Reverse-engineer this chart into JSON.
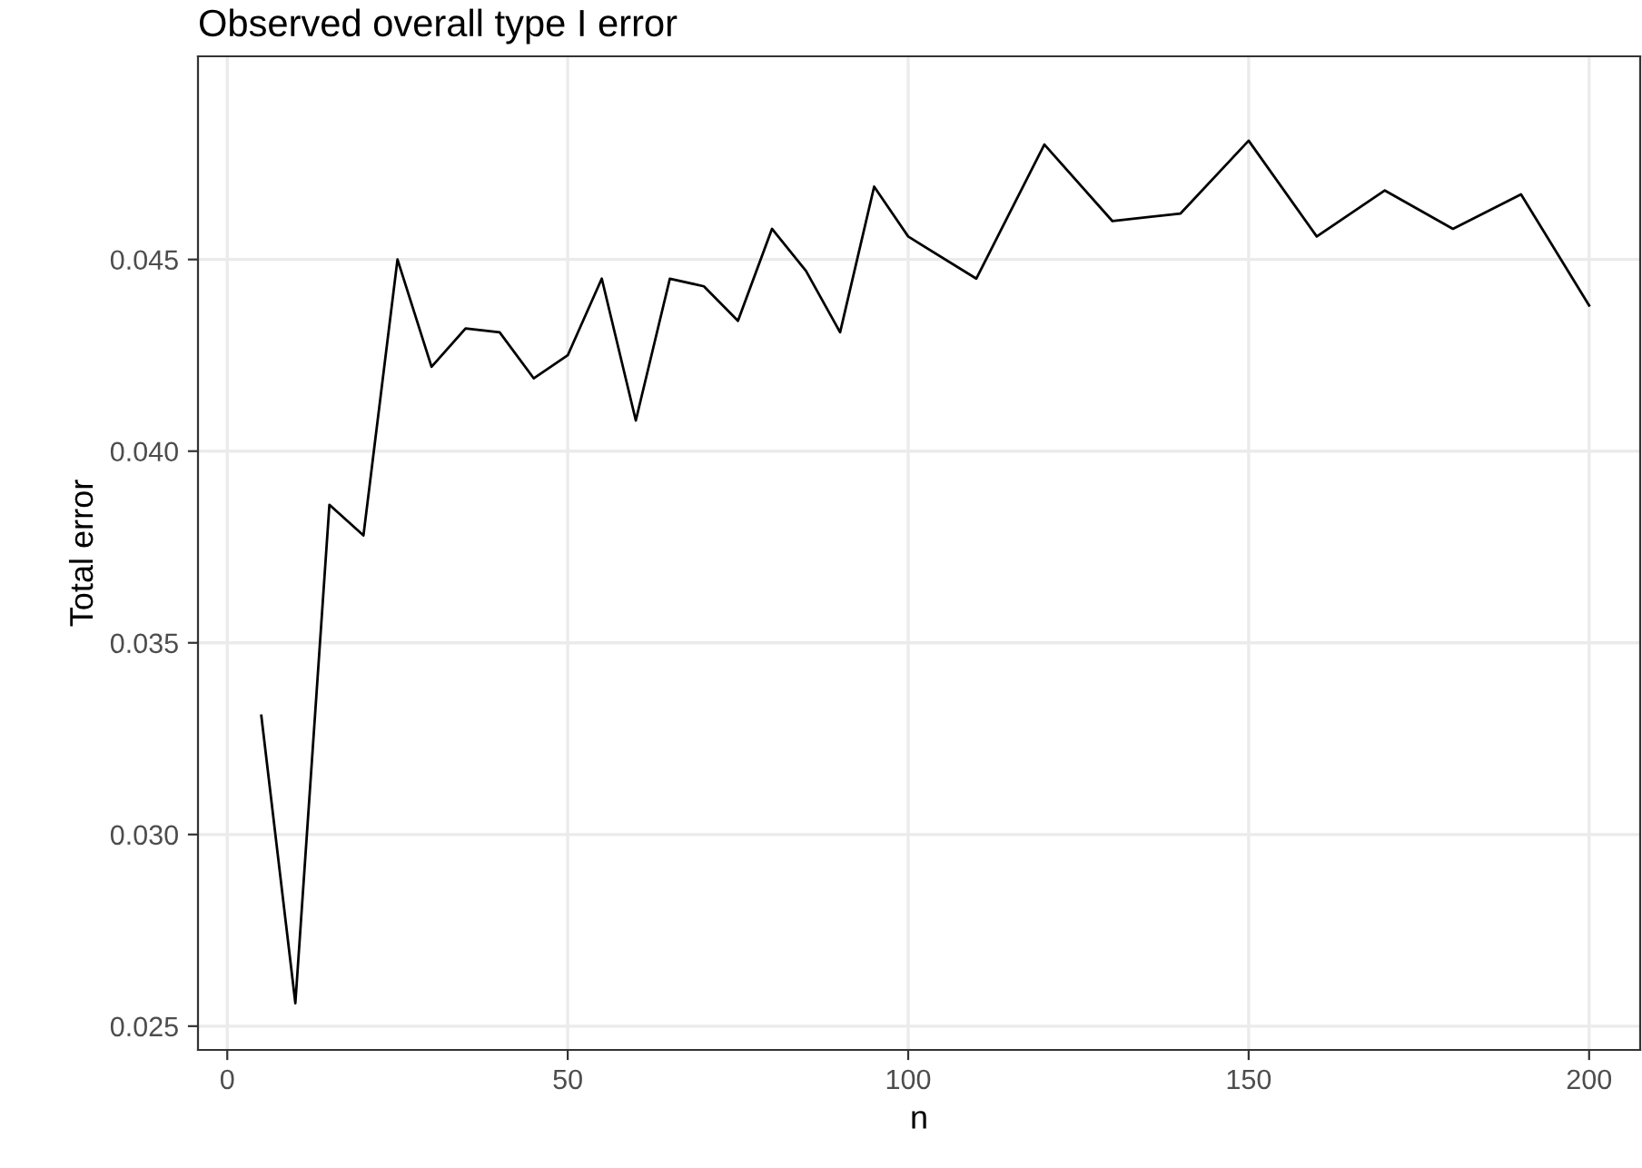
{
  "chart_data": {
    "type": "line",
    "title": "Observed overall type I error",
    "xlabel": "n",
    "ylabel": "Total error",
    "x": [
      5,
      10,
      15,
      20,
      25,
      30,
      35,
      40,
      45,
      50,
      55,
      60,
      65,
      70,
      75,
      80,
      85,
      90,
      95,
      100,
      110,
      120,
      130,
      140,
      150,
      160,
      170,
      180,
      190,
      200
    ],
    "series": [
      {
        "color": "#000000",
        "values": [
          0.0331,
          0.0256,
          0.0386,
          0.0378,
          0.045,
          0.0422,
          0.0432,
          0.0431,
          0.0419,
          0.0425,
          0.0445,
          0.0408,
          0.0445,
          0.0443,
          0.0434,
          0.0458,
          0.0447,
          0.0431,
          0.0469,
          0.0456,
          0.0445,
          0.048,
          0.046,
          0.0462,
          0.0481,
          0.0456,
          0.0468,
          0.0458,
          0.0467,
          0.0438
        ]
      }
    ],
    "xlim": [
      -4.3,
      207.5
    ],
    "ylim": [
      0.02438,
      0.0503
    ],
    "xticks": [
      0,
      50,
      100,
      150,
      200
    ],
    "yticks": [
      {
        "value": 0.025,
        "label": "0.025"
      },
      {
        "value": 0.03,
        "label": "0.030"
      },
      {
        "value": 0.035,
        "label": "0.035"
      },
      {
        "value": 0.04,
        "label": "0.040"
      },
      {
        "value": 0.045,
        "label": "0.045"
      }
    ],
    "grid": true,
    "legend": false,
    "marker": "none",
    "line_style": "solid"
  }
}
